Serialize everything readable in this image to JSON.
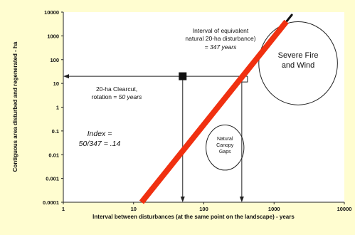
{
  "chart_data": {
    "type": "line",
    "title": "",
    "xlabel": "Interval between disturbances (at the same point on the landscape) - years",
    "ylabel": "Contiguous area disturbed and regenerated - ha",
    "x_scale": "log",
    "y_scale": "log",
    "xlim": [
      1,
      10000
    ],
    "ylim": [
      0.0001,
      10000
    ],
    "x_ticks": [
      {
        "value": 1,
        "label": "1"
      },
      {
        "value": 10,
        "label": "10"
      },
      {
        "value": 100,
        "label": "100"
      },
      {
        "value": 1000,
        "label": "1000"
      },
      {
        "value": 10000,
        "label": "10000"
      }
    ],
    "y_ticks": [
      {
        "value": 10000,
        "label": "10000"
      },
      {
        "value": 1000,
        "label": "1000"
      },
      {
        "value": 100,
        "label": "100"
      },
      {
        "value": 10,
        "label": "10"
      },
      {
        "value": 1,
        "label": "1"
      },
      {
        "value": 0.1,
        "label": "0.1"
      },
      {
        "value": 0.01,
        "label": "0.01"
      },
      {
        "value": 0.001,
        "label": "0.001"
      },
      {
        "value": 0.0001,
        "label": "0.0001"
      }
    ],
    "series": [
      {
        "x": [
          13,
          1500
        ],
        "y": [
          0.0001,
          4000
        ],
        "color": "#f03010"
      }
    ],
    "point": {
      "x": 50,
      "y": 20
    },
    "equivalent_interval": {
      "x": 347,
      "y": 20
    },
    "ellipses": [
      {
        "label_lines": [
          "Severe Fire",
          "and Wind"
        ],
        "cx": 2200,
        "cy": 70,
        "rx_decades": 0.56,
        "ry_decades": 1.75
      },
      {
        "label_lines": [
          "Natural",
          "Canopy",
          "Gaps"
        ],
        "cx": 200,
        "cy": 0.02,
        "rx_decades": 0.27,
        "ry_decades": 0.95
      }
    ],
    "annotations": {
      "interval_lines": [
        "Interval of equivalent",
        "natural 20-ha disturbance)"
      ],
      "interval_value": "= 347 years",
      "clearcut_line1": "20-ha Clearcut,",
      "clearcut_line2_prefix": "rotation = ",
      "clearcut_line2_value": "50 years",
      "index_line1": "Index =",
      "index_line2": "50/347 = .14"
    }
  }
}
